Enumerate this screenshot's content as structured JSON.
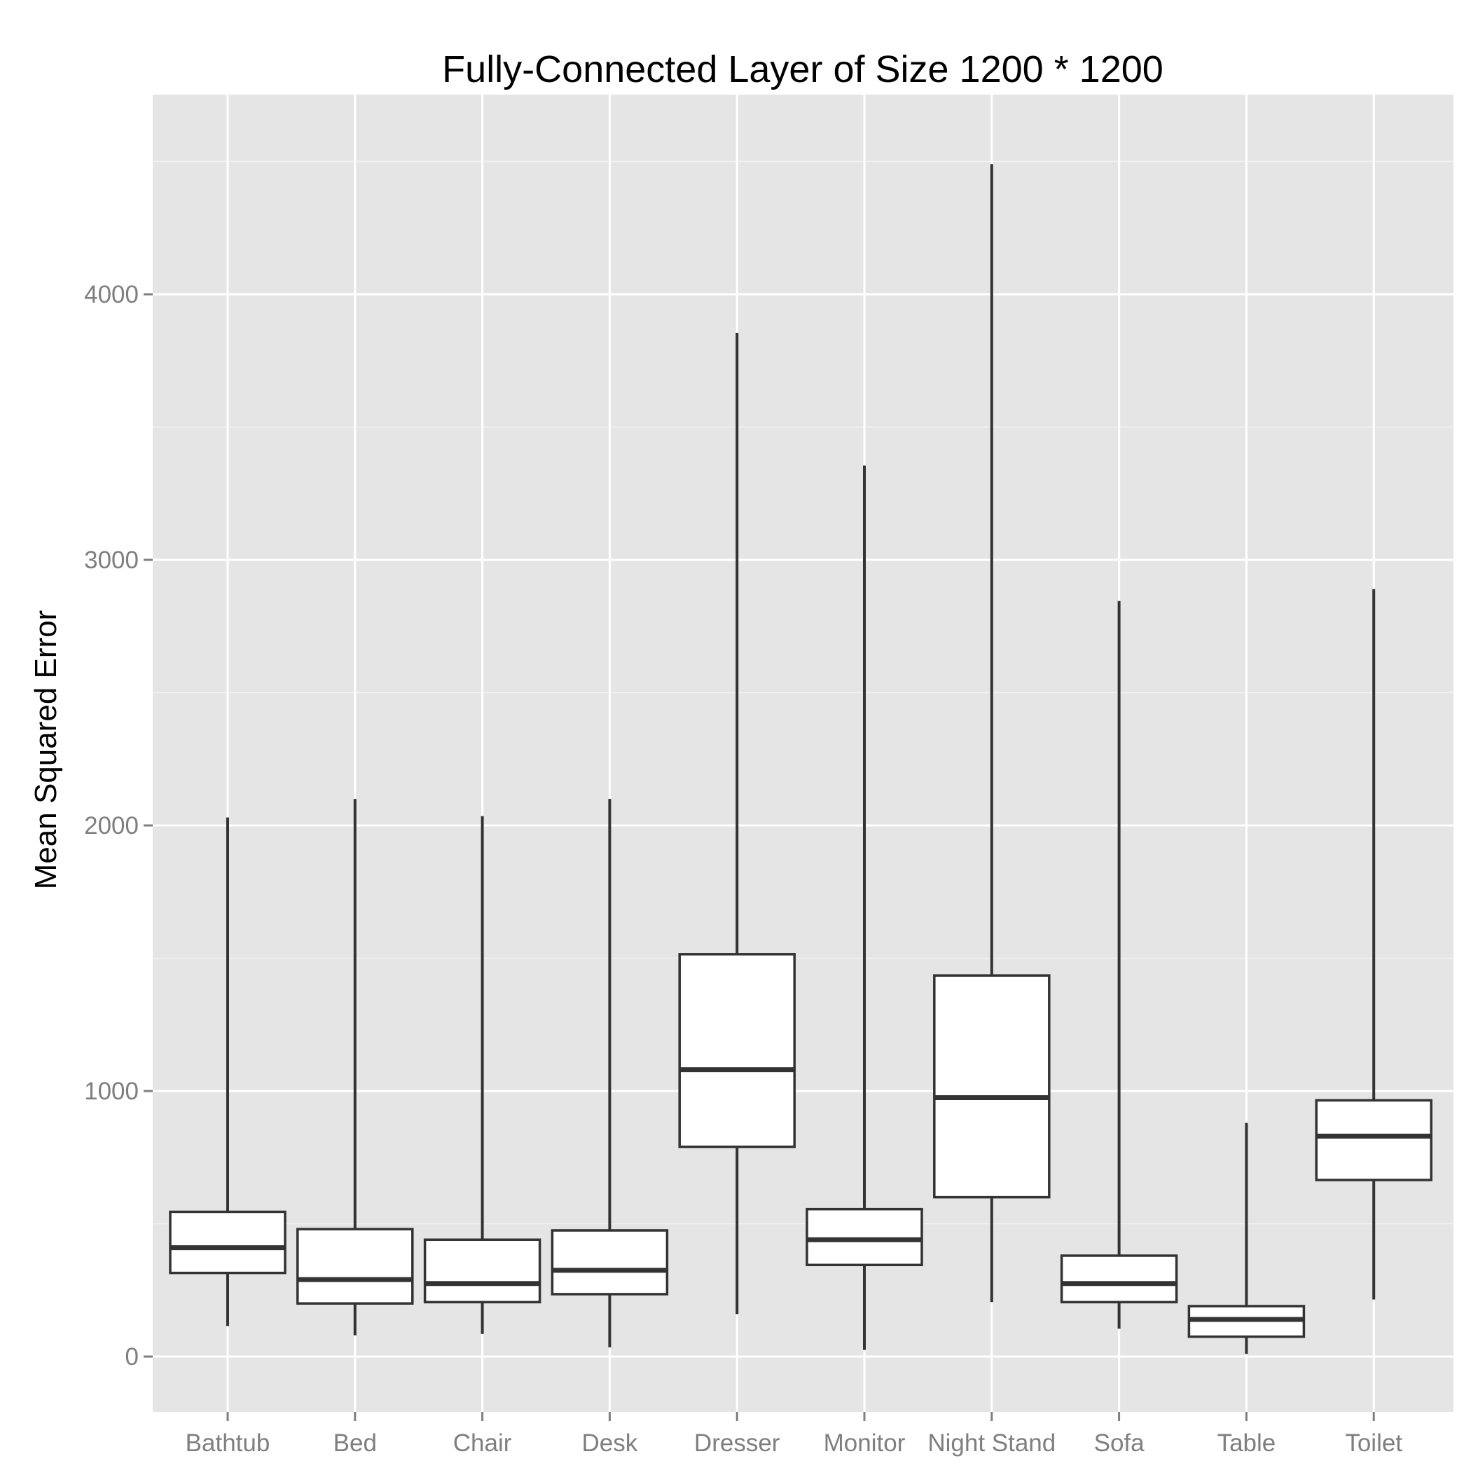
{
  "chart_data": {
    "type": "boxplot",
    "title": "Fully-Connected Layer of Size 1200 * 1200",
    "xlabel": "",
    "ylabel": "Mean Squared Error",
    "categories": [
      "Bathtub",
      "Bed",
      "Chair",
      "Desk",
      "Dresser",
      "Monitor",
      "Night Stand",
      "Sofa",
      "Table",
      "Toilet"
    ],
    "boxes": [
      {
        "category": "Bathtub",
        "whisker_low": 115,
        "q1": 315,
        "median": 410,
        "q3": 545,
        "whisker_high": 2030
      },
      {
        "category": "Bed",
        "whisker_low": 80,
        "q1": 200,
        "median": 290,
        "q3": 480,
        "whisker_high": 2100
      },
      {
        "category": "Chair",
        "whisker_low": 85,
        "q1": 205,
        "median": 275,
        "q3": 440,
        "whisker_high": 2035
      },
      {
        "category": "Desk",
        "whisker_low": 35,
        "q1": 235,
        "median": 325,
        "q3": 475,
        "whisker_high": 2100
      },
      {
        "category": "Dresser",
        "whisker_low": 160,
        "q1": 790,
        "median": 1080,
        "q3": 1515,
        "whisker_high": 3855
      },
      {
        "category": "Monitor",
        "whisker_low": 25,
        "q1": 345,
        "median": 440,
        "q3": 555,
        "whisker_high": 3355
      },
      {
        "category": "Night Stand",
        "whisker_low": 205,
        "q1": 600,
        "median": 975,
        "q3": 1435,
        "whisker_high": 4490
      },
      {
        "category": "Sofa",
        "whisker_low": 105,
        "q1": 205,
        "median": 275,
        "q3": 380,
        "whisker_high": 2845
      },
      {
        "category": "Table",
        "whisker_low": 10,
        "q1": 75,
        "median": 140,
        "q3": 190,
        "whisker_high": 880
      },
      {
        "category": "Toilet",
        "whisker_low": 215,
        "q1": 665,
        "median": 830,
        "q3": 965,
        "whisker_high": 2890
      }
    ],
    "y_ticks": [
      0,
      1000,
      2000,
      3000,
      4000
    ],
    "y_tick_labels": [
      "0",
      "1000",
      "2000",
      "3000",
      "4000"
    ],
    "ylim": [
      -210,
      4710
    ],
    "grid": true,
    "legend": "none",
    "colors": {
      "panel_background": "#e5e5e5",
      "grid_major": "#ffffff",
      "grid_minor": "#f2f2f2",
      "box_fill": "#ffffff",
      "box_line": "#333333",
      "tick_text": "#7f7f7f",
      "tick_mark": "#7f7f7f"
    }
  }
}
